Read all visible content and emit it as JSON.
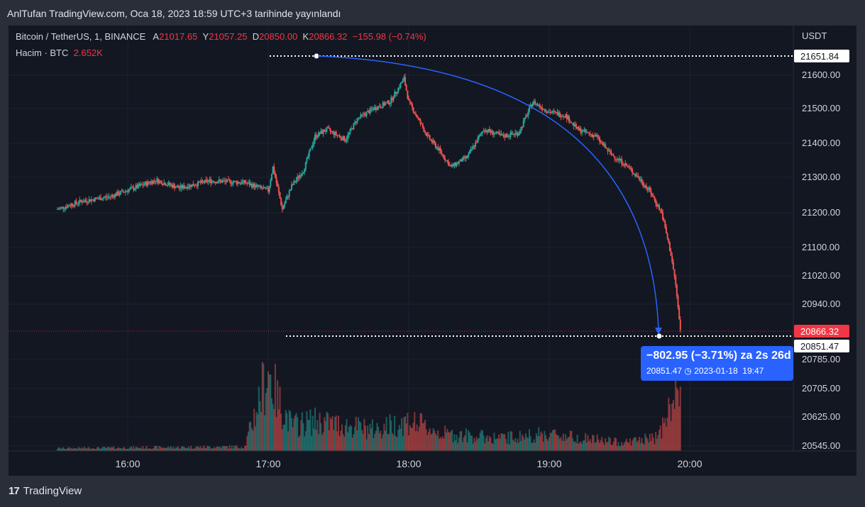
{
  "header": {
    "published": "AnlTufan TradingView.com, Oca 18, 2023 18:59 UTC+3 tarihinde yayınlandı"
  },
  "legend": {
    "symbol": "Bitcoin / TetherUS, 1, BINANCE",
    "open_label": "A",
    "open": "21017.65",
    "high_label": "Y",
    "high": "21057.25",
    "low_label": "D",
    "low": "20850.00",
    "close_label": "K",
    "close": "20866.32",
    "change": "−155.98 (−0.74%)",
    "volume_label": "Hacim · BTC",
    "volume": "2.652K"
  },
  "measure": {
    "line1": "−802.95 (−3.71%) za 2s 26d",
    "line2": "20851.47",
    "date": "2023-01-18",
    "time": "19:47"
  },
  "footer": {
    "brand": "TradingView",
    "glyph": "17"
  },
  "colors": {
    "up": "#26a69a",
    "down": "#ef5350",
    "accent": "#2962ff",
    "background": "#131722",
    "frame": "#2a2e39",
    "label_red": "#f23645"
  },
  "chart_data": {
    "type": "candlestick",
    "title": "Bitcoin / TetherUS, 1, BINANCE",
    "ylabel": "USDT",
    "y_ticks": [
      21600,
      21500,
      21400,
      21300,
      21200,
      21100,
      21020,
      20940,
      20785,
      20705,
      20625,
      20545
    ],
    "x_ticks": [
      "16:00",
      "17:00",
      "18:00",
      "19:00",
      "20:00"
    ],
    "price_labels": [
      {
        "value": 21651.84,
        "text": "21651.84",
        "style": "high-marker"
      },
      {
        "value": 20866.32,
        "text": "20866.32",
        "style": "last-price"
      },
      {
        "value": 20851.47,
        "text": "20851.47",
        "style": "target-marker"
      }
    ],
    "axis_unit_label": "USDT",
    "grid": true,
    "anchors": [
      {
        "time": "15:30",
        "price": 21210
      },
      {
        "time": "15:40",
        "price": 21232
      },
      {
        "time": "15:52",
        "price": 21245
      },
      {
        "time": "16:05",
        "price": 21275
      },
      {
        "time": "16:12",
        "price": 21292
      },
      {
        "time": "16:22",
        "price": 21270
      },
      {
        "time": "16:35",
        "price": 21290
      },
      {
        "time": "16:50",
        "price": 21285
      },
      {
        "time": "17:00",
        "price": 21262
      },
      {
        "time": "17:02",
        "price": 21330
      },
      {
        "time": "17:06",
        "price": 21210
      },
      {
        "time": "17:10",
        "price": 21275
      },
      {
        "time": "17:15",
        "price": 21320
      },
      {
        "time": "17:20",
        "price": 21420
      },
      {
        "time": "17:25",
        "price": 21440
      },
      {
        "time": "17:33",
        "price": 21410
      },
      {
        "time": "17:38",
        "price": 21470
      },
      {
        "time": "17:45",
        "price": 21500
      },
      {
        "time": "17:52",
        "price": 21520
      },
      {
        "time": "17:58",
        "price": 21590
      },
      {
        "time": "18:00",
        "price": 21520
      },
      {
        "time": "18:04",
        "price": 21470
      },
      {
        "time": "18:08",
        "price": 21420
      },
      {
        "time": "18:13",
        "price": 21380
      },
      {
        "time": "18:18",
        "price": 21330
      },
      {
        "time": "18:25",
        "price": 21360
      },
      {
        "time": "18:32",
        "price": 21440
      },
      {
        "time": "18:40",
        "price": 21420
      },
      {
        "time": "18:47",
        "price": 21430
      },
      {
        "time": "18:53",
        "price": 21520
      },
      {
        "time": "19:00",
        "price": 21490
      },
      {
        "time": "19:07",
        "price": 21480
      },
      {
        "time": "19:12",
        "price": 21440
      },
      {
        "time": "19:20",
        "price": 21420
      },
      {
        "time": "19:26",
        "price": 21370
      },
      {
        "time": "19:32",
        "price": 21340
      },
      {
        "time": "19:38",
        "price": 21300
      },
      {
        "time": "19:43",
        "price": 21260
      },
      {
        "time": "19:48",
        "price": 21200
      },
      {
        "time": "19:52",
        "price": 21080
      },
      {
        "time": "19:54",
        "price": 20995
      },
      {
        "time": "19:56",
        "price": 20866
      }
    ],
    "volume_anchors": [
      {
        "time": "15:30",
        "volume": 0.03
      },
      {
        "time": "16:50",
        "volume": 0.05
      },
      {
        "time": "17:00",
        "volume": 0.95
      },
      {
        "time": "17:04",
        "volume": 0.6
      },
      {
        "time": "17:10",
        "volume": 0.3
      },
      {
        "time": "17:20",
        "volume": 0.35
      },
      {
        "time": "17:45",
        "volume": 0.25
      },
      {
        "time": "18:00",
        "volume": 0.35
      },
      {
        "time": "18:15",
        "volume": 0.2
      },
      {
        "time": "18:40",
        "volume": 0.15
      },
      {
        "time": "19:00",
        "volume": 0.2
      },
      {
        "time": "19:30",
        "volume": 0.1
      },
      {
        "time": "19:45",
        "volume": 0.15
      },
      {
        "time": "19:50",
        "volume": 0.35
      },
      {
        "time": "19:56",
        "volume": 0.9
      }
    ]
  }
}
